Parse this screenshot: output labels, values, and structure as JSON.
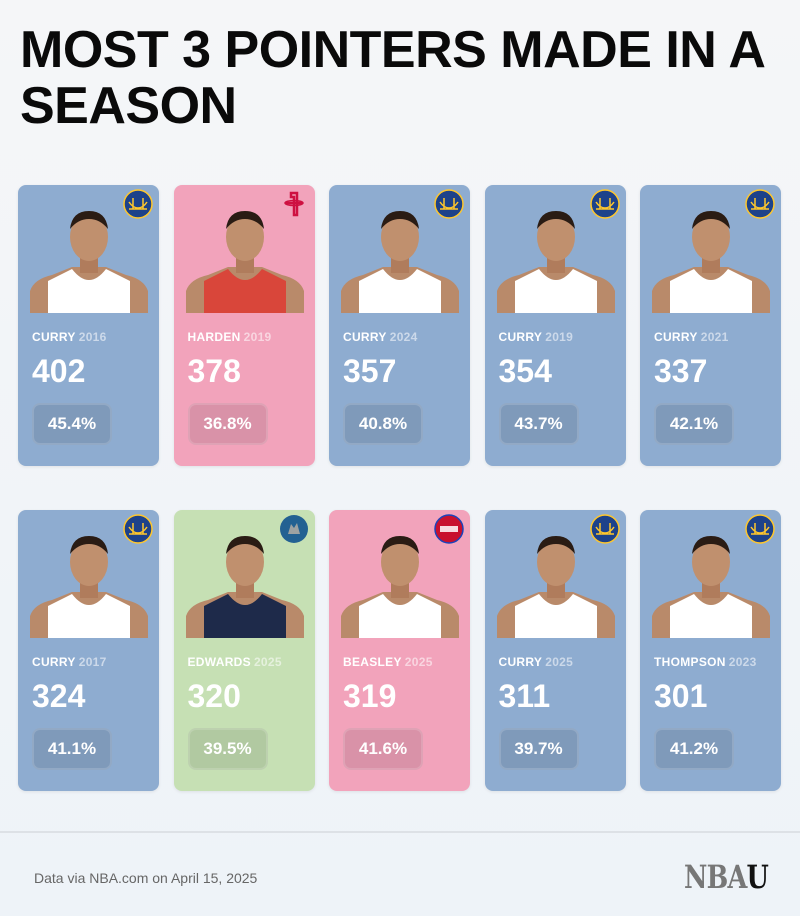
{
  "title": "MOST 3 POINTERS MADE IN A SEASON",
  "colors": {
    "warriors": "#8eacd0",
    "rockets": "#f2a3bb",
    "timberwolves": "#c6e0b4",
    "pistons": "#f2a3bb"
  },
  "players": [
    {
      "name": "CURRY",
      "year": "2016",
      "threes": "402",
      "pct": "45.4%",
      "team_logo": "warriors-bridge-icon",
      "color": "blue",
      "jersey": "#ffffff"
    },
    {
      "name": "HARDEN",
      "year": "2019",
      "threes": "378",
      "pct": "36.8%",
      "team_logo": "rockets-r-icon",
      "color": "pink",
      "jersey": "#d9463a"
    },
    {
      "name": "CURRY",
      "year": "2024",
      "threes": "357",
      "pct": "40.8%",
      "team_logo": "warriors-bridge-icon",
      "color": "blue",
      "jersey": "#ffffff"
    },
    {
      "name": "CURRY",
      "year": "2019",
      "threes": "354",
      "pct": "43.7%",
      "team_logo": "warriors-bridge-icon",
      "color": "blue",
      "jersey": "#ffffff"
    },
    {
      "name": "CURRY",
      "year": "2021",
      "threes": "337",
      "pct": "42.1%",
      "team_logo": "warriors-bridge-icon",
      "color": "blue",
      "jersey": "#ffffff"
    },
    {
      "name": "CURRY",
      "year": "2017",
      "threes": "324",
      "pct": "41.1%",
      "team_logo": "warriors-bridge-icon",
      "color": "blue",
      "jersey": "#ffffff"
    },
    {
      "name": "EDWARDS",
      "year": "2025",
      "threes": "320",
      "pct": "39.5%",
      "team_logo": "timberwolves-icon",
      "color": "green",
      "jersey": "#1e2a4a"
    },
    {
      "name": "BEASLEY",
      "year": "2025",
      "threes": "319",
      "pct": "41.6%",
      "team_logo": "pistons-icon",
      "color": "pink",
      "jersey": "#ffffff"
    },
    {
      "name": "CURRY",
      "year": "2025",
      "threes": "311",
      "pct": "39.7%",
      "team_logo": "warriors-bridge-icon",
      "color": "blue",
      "jersey": "#ffffff"
    },
    {
      "name": "THOMPSON",
      "year": "2023",
      "threes": "301",
      "pct": "41.2%",
      "team_logo": "warriors-bridge-icon",
      "color": "blue",
      "jersey": "#ffffff"
    }
  ],
  "footer": {
    "source": "Data via NBA.com on April 15, 2025",
    "brand_a": "NBA",
    "brand_b": "U"
  }
}
